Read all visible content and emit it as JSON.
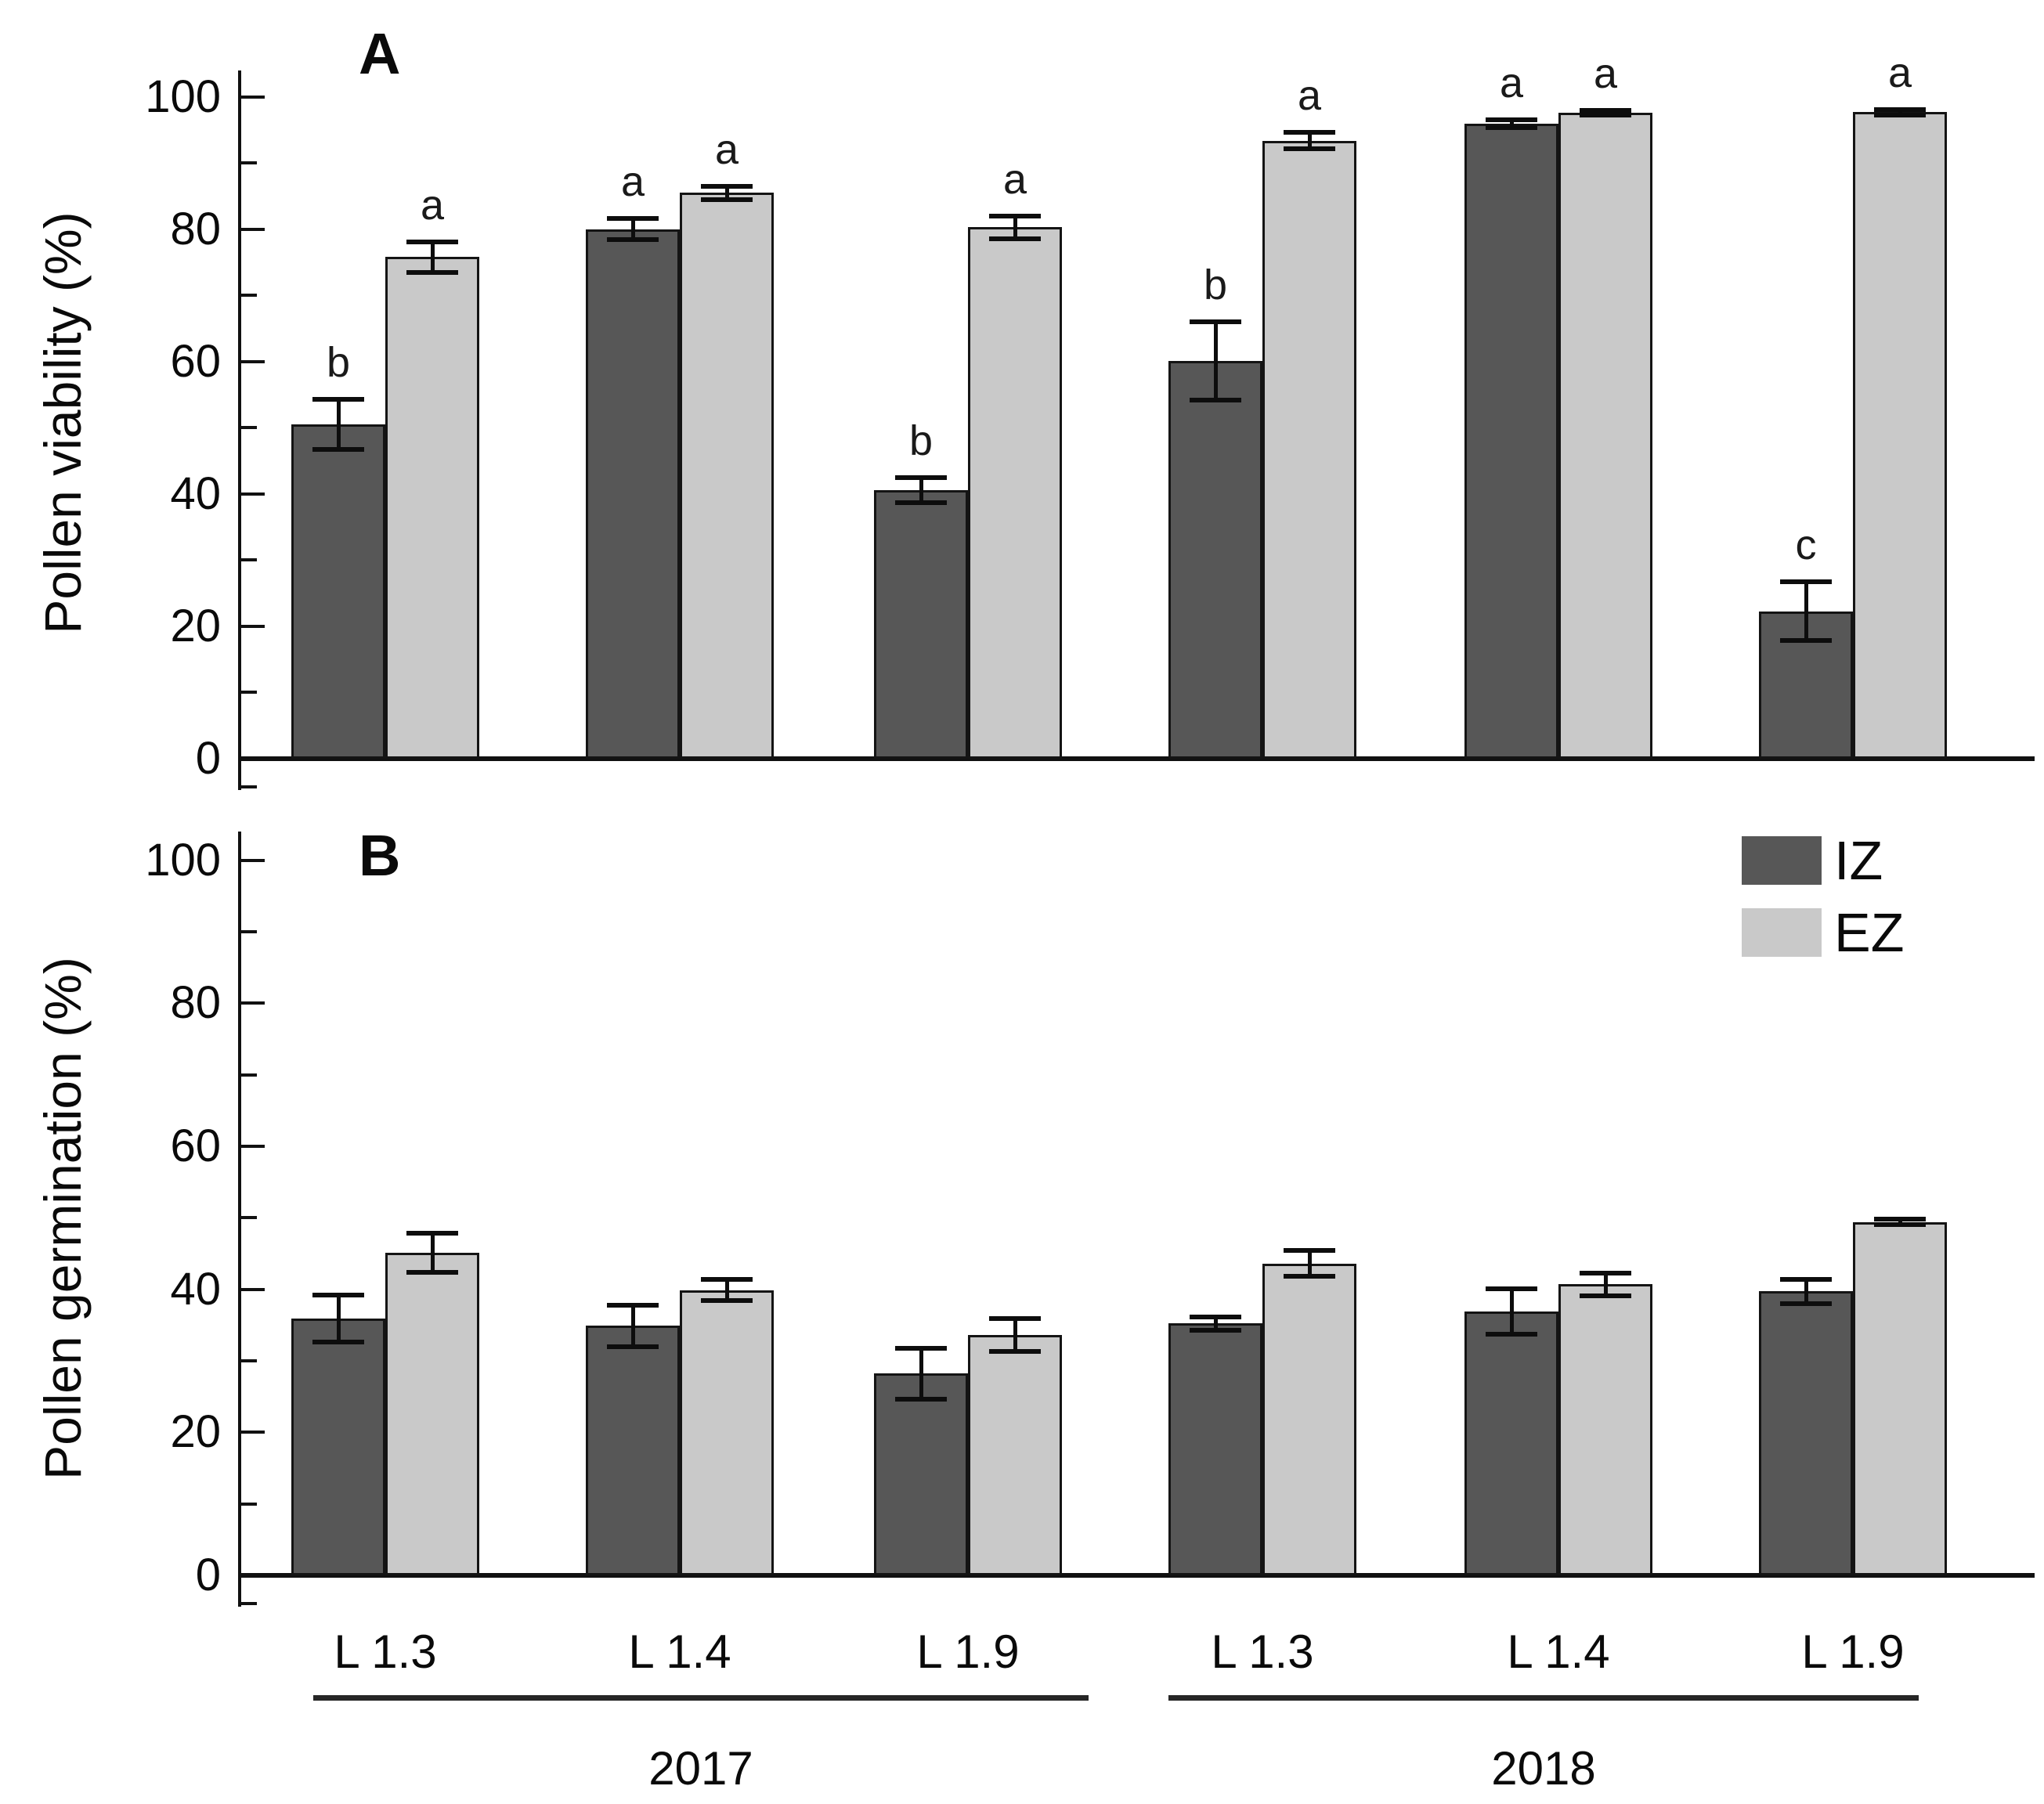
{
  "figure": {
    "background": "#ffffff",
    "panels": {
      "a": {
        "letter": "A",
        "y_axis_title": "Pollen viability (%)"
      },
      "b": {
        "letter": "B",
        "y_axis_title": "Pollen germination (%)"
      }
    },
    "legend": {
      "position": "top-right-of-panel-b",
      "items": [
        {
          "label": "IZ",
          "color": "#575757"
        },
        {
          "label": "EZ",
          "color": "#c9c9c9"
        }
      ]
    },
    "x_axis": {
      "categories": [
        "L 1.3",
        "L 1.4",
        "L 1.9",
        "L 1.3",
        "L 1.4",
        "L 1.9"
      ],
      "year_groups": [
        {
          "label": "2017",
          "category_indexes": [
            0,
            1,
            2
          ]
        },
        {
          "label": "2018",
          "category_indexes": [
            3,
            4,
            5
          ]
        }
      ]
    }
  },
  "chart_data": [
    {
      "type": "bar",
      "panel": "A",
      "title": "",
      "xlabel": "",
      "ylabel": "Pollen viability (%)",
      "ylim": [
        0,
        100
      ],
      "yticks": [
        0,
        20,
        40,
        60,
        80,
        100
      ],
      "minor_yticks": [
        10,
        30,
        50,
        70,
        90
      ],
      "grid": false,
      "error_bars": true,
      "legend_position": "none",
      "categories": [
        "L 1.3",
        "L 1.4",
        "L 1.9",
        "L 1.3",
        "L 1.4",
        "L 1.9"
      ],
      "category_years": [
        "2017",
        "2017",
        "2017",
        "2018",
        "2018",
        "2018"
      ],
      "series": [
        {
          "name": "IZ",
          "color": "#575757",
          "values": [
            50.5,
            80.0,
            40.6,
            60.1,
            96.0,
            22.3
          ],
          "errors": [
            3.8,
            1.6,
            1.9,
            5.9,
            0.6,
            4.4
          ],
          "sig_letters": [
            "b",
            "a",
            "b",
            "b",
            "a",
            "c"
          ]
        },
        {
          "name": "EZ",
          "color": "#c9c9c9",
          "values": [
            75.8,
            85.5,
            80.3,
            93.4,
            97.6,
            97.7
          ],
          "errors": [
            2.3,
            1.0,
            1.7,
            1.2,
            0.4,
            0.4
          ],
          "sig_letters": [
            "a",
            "a",
            "a",
            "a",
            "a",
            "a"
          ]
        }
      ]
    },
    {
      "type": "bar",
      "panel": "B",
      "title": "",
      "xlabel": "",
      "ylabel": "Pollen germination (%)",
      "ylim": [
        0,
        100
      ],
      "yticks": [
        0,
        20,
        40,
        60,
        80,
        100
      ],
      "minor_yticks": [
        10,
        30,
        50,
        70,
        90
      ],
      "grid": false,
      "error_bars": true,
      "legend_position": "inside-top-right",
      "categories": [
        "L 1.3",
        "L 1.4",
        "L 1.9",
        "L 1.3",
        "L 1.4",
        "L 1.9"
      ],
      "category_years": [
        "2017",
        "2017",
        "2017",
        "2018",
        "2018",
        "2018"
      ],
      "series": [
        {
          "name": "IZ",
          "color": "#575757",
          "values": [
            35.9,
            34.9,
            28.2,
            35.2,
            36.9,
            39.7
          ],
          "errors": [
            3.3,
            2.9,
            3.6,
            0.9,
            3.2,
            1.7
          ],
          "sig_letters": null
        },
        {
          "name": "EZ",
          "color": "#c9c9c9",
          "values": [
            45.1,
            39.9,
            33.6,
            43.6,
            40.7,
            49.4
          ],
          "errors": [
            2.7,
            1.5,
            2.3,
            1.8,
            1.6,
            0.4
          ],
          "sig_letters": null
        }
      ]
    }
  ]
}
